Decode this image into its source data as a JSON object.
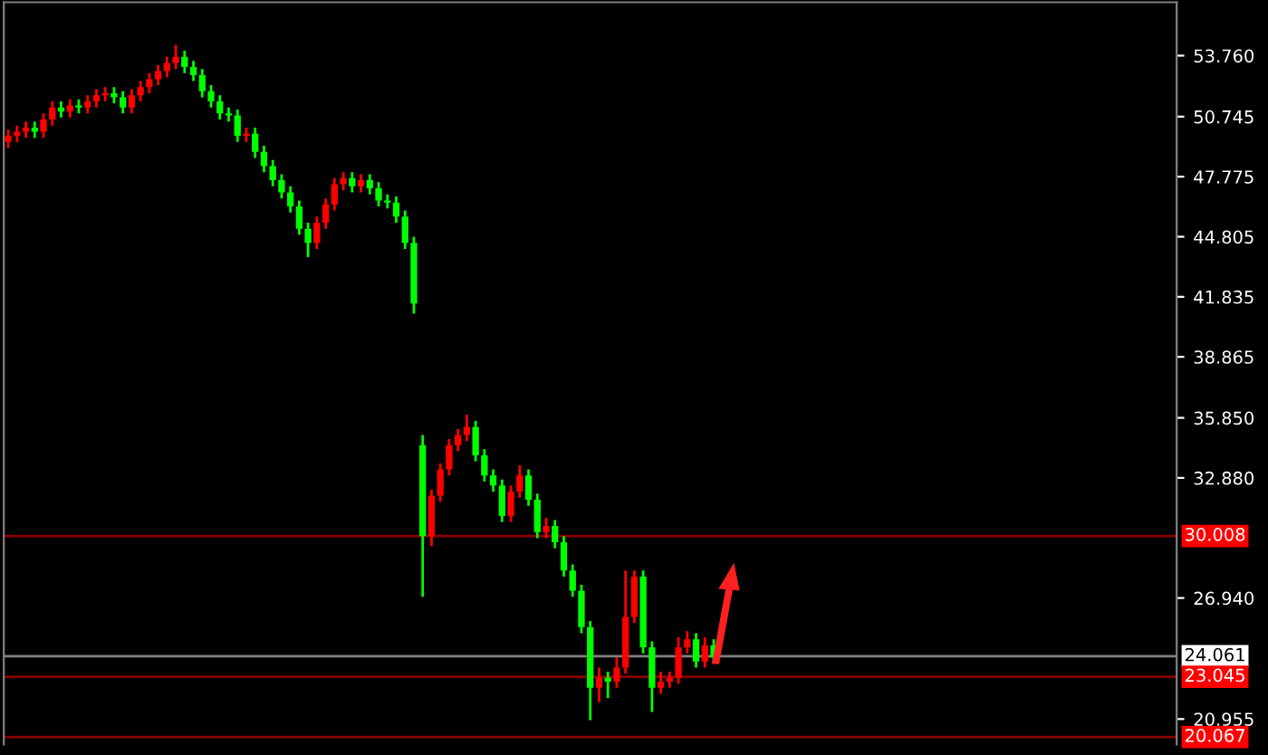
{
  "chart_data": {
    "type": "candlestick",
    "categories": [
      null,
      null,
      null,
      null,
      null,
      null,
      null,
      null,
      null,
      null,
      null,
      null,
      null,
      null,
      null,
      null,
      null,
      null,
      null,
      null,
      null,
      null,
      null,
      null,
      null,
      null,
      null,
      null,
      null,
      null,
      null,
      null,
      null,
      null,
      null,
      null,
      null,
      null,
      null,
      null,
      null,
      null,
      null,
      null,
      null,
      null,
      null,
      null,
      null,
      null,
      null,
      null,
      null,
      null,
      null,
      null,
      null,
      null,
      null,
      null,
      null,
      null,
      null,
      null,
      null,
      null,
      null,
      null,
      null,
      null,
      null,
      null,
      null,
      null,
      null,
      null,
      null,
      null,
      null,
      null,
      null,
      null,
      null,
      null,
      null,
      null,
      null,
      null,
      null,
      null,
      null,
      null,
      null,
      null,
      null,
      null,
      null,
      null,
      null,
      null,
      null,
      null,
      null,
      null,
      null,
      null,
      null,
      null,
      null,
      null,
      null,
      null,
      null,
      null,
      null,
      null,
      null,
      null,
      null,
      null,
      null,
      null,
      null,
      null,
      null,
      null,
      null,
      null,
      null,
      null,
      null,
      null,
      null
    ],
    "ohlc": [
      [
        49.5,
        50.1,
        49.2,
        49.8
      ],
      [
        49.8,
        50.3,
        49.5,
        50.0
      ],
      [
        50.0,
        50.5,
        49.7,
        50.2
      ],
      [
        50.2,
        50.5,
        49.7,
        50.0
      ],
      [
        50.0,
        50.9,
        49.7,
        50.6
      ],
      [
        50.6,
        51.5,
        50.3,
        51.2
      ],
      [
        51.2,
        51.5,
        50.7,
        51.0
      ],
      [
        51.0,
        51.6,
        50.7,
        51.3
      ],
      [
        51.3,
        51.6,
        50.9,
        51.2
      ],
      [
        51.2,
        51.8,
        50.9,
        51.5
      ],
      [
        51.5,
        52.1,
        51.2,
        51.8
      ],
      [
        51.8,
        52.2,
        51.5,
        51.9
      ],
      [
        51.9,
        52.2,
        51.4,
        51.7
      ],
      [
        51.7,
        52.0,
        50.9,
        51.2
      ],
      [
        51.2,
        52.1,
        50.9,
        51.8
      ],
      [
        51.8,
        52.5,
        51.5,
        52.2
      ],
      [
        52.2,
        52.9,
        51.9,
        52.6
      ],
      [
        52.6,
        53.3,
        52.3,
        53.0
      ],
      [
        53.0,
        53.7,
        52.7,
        53.4
      ],
      [
        53.4,
        54.3,
        53.1,
        53.7
      ],
      [
        53.7,
        54.0,
        52.9,
        53.2
      ],
      [
        53.2,
        53.5,
        52.5,
        52.8
      ],
      [
        52.8,
        53.1,
        51.7,
        52.0
      ],
      [
        52.0,
        52.3,
        51.2,
        51.5
      ],
      [
        51.5,
        51.8,
        50.6,
        50.9
      ],
      [
        50.9,
        51.2,
        50.5,
        50.8
      ],
      [
        50.8,
        51.1,
        49.5,
        49.8
      ],
      [
        49.8,
        50.2,
        49.5,
        49.9
      ],
      [
        49.9,
        50.2,
        48.7,
        49.0
      ],
      [
        49.0,
        49.3,
        48.0,
        48.3
      ],
      [
        48.3,
        48.6,
        47.3,
        47.6
      ],
      [
        47.6,
        47.9,
        46.7,
        47.0
      ],
      [
        47.0,
        47.3,
        46.0,
        46.3
      ],
      [
        46.3,
        46.6,
        44.9,
        45.2
      ],
      [
        45.2,
        45.5,
        43.8,
        44.5
      ],
      [
        44.5,
        45.8,
        44.2,
        45.5
      ],
      [
        45.5,
        46.7,
        45.2,
        46.4
      ],
      [
        46.4,
        47.7,
        46.1,
        47.4
      ],
      [
        47.4,
        48.0,
        47.1,
        47.7
      ],
      [
        47.7,
        48.0,
        47.0,
        47.3
      ],
      [
        47.3,
        47.9,
        47.0,
        47.6
      ],
      [
        47.6,
        47.9,
        46.9,
        47.2
      ],
      [
        47.2,
        47.5,
        46.3,
        46.6
      ],
      [
        46.6,
        46.9,
        46.2,
        46.5
      ],
      [
        46.5,
        46.8,
        45.5,
        45.8
      ],
      [
        45.8,
        46.1,
        44.2,
        44.5
      ],
      [
        44.5,
        44.8,
        41.0,
        41.5
      ],
      [
        34.5,
        35.0,
        27.0,
        30.0
      ],
      [
        30.0,
        32.3,
        29.5,
        32.0
      ],
      [
        32.0,
        33.6,
        31.7,
        33.3
      ],
      [
        33.3,
        34.8,
        33.0,
        34.5
      ],
      [
        34.5,
        35.3,
        34.2,
        35.0
      ],
      [
        35.0,
        36.0,
        34.7,
        35.4
      ],
      [
        35.4,
        35.7,
        33.7,
        34.0
      ],
      [
        34.0,
        34.3,
        32.7,
        33.0
      ],
      [
        33.0,
        33.3,
        32.2,
        32.5
      ],
      [
        32.5,
        32.8,
        30.7,
        31.0
      ],
      [
        31.0,
        32.5,
        30.7,
        32.2
      ],
      [
        32.2,
        33.5,
        31.9,
        33.0
      ],
      [
        33.0,
        33.3,
        31.5,
        31.8
      ],
      [
        31.8,
        32.1,
        29.9,
        30.2
      ],
      [
        30.2,
        30.9,
        29.9,
        30.5
      ],
      [
        30.5,
        30.8,
        29.4,
        29.7
      ],
      [
        29.7,
        30.0,
        28.0,
        28.3
      ],
      [
        28.3,
        28.6,
        27.0,
        27.3
      ],
      [
        27.3,
        27.6,
        25.2,
        25.5
      ],
      [
        25.5,
        25.8,
        20.9,
        22.5
      ],
      [
        22.5,
        23.5,
        21.8,
        23.0
      ],
      [
        23.0,
        23.3,
        22.0,
        22.8
      ],
      [
        22.8,
        24.0,
        22.5,
        23.5
      ],
      [
        23.5,
        28.3,
        23.2,
        26.0
      ],
      [
        26.0,
        28.3,
        25.7,
        28.0
      ],
      [
        28.0,
        28.3,
        24.2,
        24.5
      ],
      [
        24.5,
        24.8,
        21.3,
        22.5
      ],
      [
        22.5,
        23.3,
        22.2,
        22.8
      ],
      [
        22.8,
        23.3,
        22.5,
        23.0
      ],
      [
        23.0,
        25.0,
        22.7,
        24.5
      ],
      [
        24.5,
        25.3,
        24.2,
        24.9
      ],
      [
        24.9,
        25.2,
        23.5,
        23.8
      ],
      [
        23.8,
        25.0,
        23.5,
        24.6
      ],
      [
        24.6,
        24.9,
        23.7,
        24.0
      ],
      null,
      null,
      null,
      null,
      null,
      null,
      null,
      null,
      null,
      null,
      null,
      null,
      null,
      null,
      null,
      null,
      null,
      null,
      null,
      null,
      null,
      null,
      null,
      null,
      null,
      null,
      null,
      null,
      null,
      null,
      null,
      null,
      null,
      null,
      null,
      null,
      null,
      null,
      null,
      null,
      null,
      null,
      null,
      null,
      null,
      null,
      null,
      null,
      null,
      null,
      null,
      null
    ],
    "colors": [
      "#ff0000",
      "#ff0000",
      "#ff0000",
      "#00ff00",
      "#ff0000",
      "#ff0000",
      "#00ff00",
      "#ff0000",
      "#00ff00",
      "#ff0000",
      "#ff0000",
      "#ff0000",
      "#00ff00",
      "#00ff00",
      "#ff0000",
      "#ff0000",
      "#ff0000",
      "#ff0000",
      "#ff0000",
      "#ff0000",
      "#00ff00",
      "#00ff00",
      "#00ff00",
      "#00ff00",
      "#00ff00",
      "#00ff00",
      "#00ff00",
      "#ff0000",
      "#00ff00",
      "#00ff00",
      "#00ff00",
      "#00ff00",
      "#00ff00",
      "#00ff00",
      "#00ff00",
      "#ff0000",
      "#ff0000",
      "#ff0000",
      "#ff0000",
      "#00ff00",
      "#ff0000",
      "#00ff00",
      "#00ff00",
      "#00ff00",
      "#00ff00",
      "#00ff00",
      "#00ff00",
      "#00ff00",
      "#ff0000",
      "#ff0000",
      "#ff0000",
      "#ff0000",
      "#ff0000",
      "#00ff00",
      "#00ff00",
      "#00ff00",
      "#00ff00",
      "#ff0000",
      "#ff0000",
      "#00ff00",
      "#00ff00",
      "#ff0000",
      "#00ff00",
      "#00ff00",
      "#00ff00",
      "#00ff00",
      "#00ff00",
      "#ff0000",
      "#00ff00",
      "#ff0000",
      "#ff0000",
      "#ff0000",
      "#00ff00",
      "#00ff00",
      "#ff0000",
      "#ff0000",
      "#ff0000",
      "#ff0000",
      "#00ff00",
      "#ff0000",
      "#00ff00",
      null,
      null,
      null,
      null,
      null,
      null,
      null,
      null,
      null,
      null,
      null,
      null,
      null,
      null,
      null,
      null,
      null,
      null,
      null,
      null,
      null,
      null,
      null,
      null,
      null,
      null,
      null,
      null,
      null,
      null,
      null,
      null,
      null,
      null,
      null,
      null,
      null,
      null,
      null,
      null,
      null,
      null,
      null,
      null,
      null,
      null,
      null,
      null,
      null,
      null,
      null,
      null
    ],
    "ylim": [
      19.7,
      56.4
    ],
    "yticks": [
      {
        "value": 53.76,
        "label": "53.760"
      },
      {
        "value": 50.745,
        "label": "50.745"
      },
      {
        "value": 47.775,
        "label": "47.775"
      },
      {
        "value": 44.805,
        "label": "44.805"
      },
      {
        "value": 41.835,
        "label": "41.835"
      },
      {
        "value": 38.865,
        "label": "38.865"
      },
      {
        "value": 35.85,
        "label": "35.850"
      },
      {
        "value": 32.88,
        "label": "32.880"
      },
      {
        "value": 26.94,
        "label": "26.940"
      },
      {
        "value": 20.955,
        "label": "20.955"
      }
    ],
    "ref_lines": [
      {
        "axis": "y",
        "value": 30.008,
        "label": "30.008",
        "color": "#8b0000"
      },
      {
        "axis": "y",
        "value": 24.061,
        "label": "24.061",
        "color": "#808080"
      },
      {
        "axis": "y",
        "value": 23.045,
        "label": "23.045",
        "color": "#8b0000"
      },
      {
        "axis": "y",
        "value": 20.067,
        "label": "20.067",
        "color": "#8b0000"
      }
    ],
    "grid": false
  }
}
